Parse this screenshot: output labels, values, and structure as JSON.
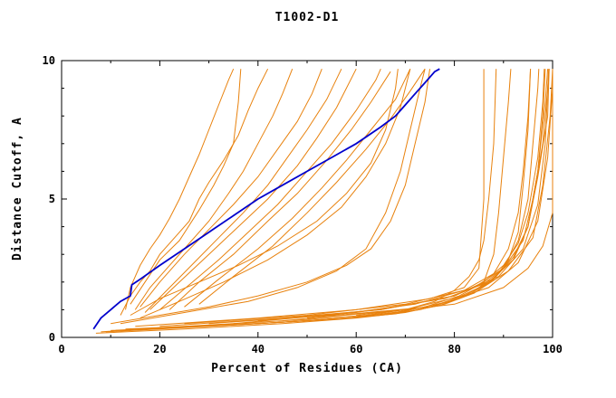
{
  "chart_data": {
    "type": "line",
    "title": "T1002-D1",
    "xlabel": "Percent of Residues (CA)",
    "ylabel": "Distance Cutoff, A",
    "xlim": [
      0,
      100
    ],
    "ylim": [
      0,
      10
    ],
    "xticks_major": [
      0,
      20,
      40,
      60,
      80,
      100
    ],
    "xticks_minor": [
      10,
      30,
      50,
      70,
      90
    ],
    "yticks_major": [
      0,
      5,
      10
    ],
    "yticks_minor": [
      1,
      2,
      3,
      4,
      6,
      7,
      8,
      9
    ],
    "grid": false,
    "legend": "none",
    "colors": {
      "predictions": "#e8820e",
      "highlight": "#0000cc",
      "axis": "#000000",
      "background": "#ffffff"
    },
    "highlight": [
      [
        6.5,
        0.3
      ],
      [
        8,
        0.7
      ],
      [
        10,
        1.0
      ],
      [
        12,
        1.3
      ],
      [
        14,
        1.5
      ],
      [
        14.3,
        1.9
      ],
      [
        16,
        2.1
      ],
      [
        20,
        2.6
      ],
      [
        25,
        3.2
      ],
      [
        30,
        3.8
      ],
      [
        35,
        4.4
      ],
      [
        40,
        5.0
      ],
      [
        45,
        5.5
      ],
      [
        50,
        6.0
      ],
      [
        55,
        6.5
      ],
      [
        60,
        7.0
      ],
      [
        65,
        7.6
      ],
      [
        68,
        8.0
      ],
      [
        70,
        8.4
      ],
      [
        72,
        8.8
      ],
      [
        74,
        9.2
      ],
      [
        76,
        9.6
      ],
      [
        77,
        9.7
      ]
    ],
    "series": [
      [
        [
          13,
          1.0
        ],
        [
          14,
          1.8
        ],
        [
          15,
          2.2
        ],
        [
          16,
          2.6
        ],
        [
          18,
          3.2
        ],
        [
          20,
          3.7
        ],
        [
          22,
          4.3
        ],
        [
          24,
          5.0
        ],
        [
          26,
          5.8
        ],
        [
          28,
          6.6
        ],
        [
          30,
          7.5
        ],
        [
          32,
          8.4
        ],
        [
          34,
          9.3
        ],
        [
          35,
          9.7
        ]
      ],
      [
        [
          12,
          0.8
        ],
        [
          14,
          1.5
        ],
        [
          16,
          2.0
        ],
        [
          18,
          2.4
        ],
        [
          20,
          3.0
        ],
        [
          23,
          3.6
        ],
        [
          26,
          4.2
        ],
        [
          28,
          5.0
        ],
        [
          30,
          5.6
        ],
        [
          33,
          6.4
        ],
        [
          36,
          7.3
        ],
        [
          38,
          8.2
        ],
        [
          40,
          9.0
        ],
        [
          42,
          9.7
        ]
      ],
      [
        [
          14,
          1.2
        ],
        [
          17,
          2.0
        ],
        [
          20,
          2.8
        ],
        [
          24,
          3.5
        ],
        [
          28,
          4.6
        ],
        [
          31,
          5.5
        ],
        [
          33,
          6.2
        ],
        [
          35,
          7.0
        ],
        [
          36,
          8.5
        ],
        [
          36.5,
          9.7
        ]
      ],
      [
        [
          15,
          1.0
        ],
        [
          18,
          1.8
        ],
        [
          22,
          2.6
        ],
        [
          26,
          3.4
        ],
        [
          30,
          4.2
        ],
        [
          34,
          5.2
        ],
        [
          37,
          6.0
        ],
        [
          40,
          7.0
        ],
        [
          43,
          8.0
        ],
        [
          45,
          8.8
        ],
        [
          47,
          9.7
        ]
      ],
      [
        [
          16,
          1.1
        ],
        [
          20,
          2.0
        ],
        [
          25,
          3.0
        ],
        [
          30,
          3.9
        ],
        [
          35,
          4.8
        ],
        [
          40,
          5.8
        ],
        [
          44,
          6.8
        ],
        [
          48,
          7.8
        ],
        [
          51,
          8.8
        ],
        [
          53,
          9.7
        ]
      ],
      [
        [
          17,
          0.9
        ],
        [
          22,
          1.8
        ],
        [
          27,
          2.7
        ],
        [
          32,
          3.6
        ],
        [
          37,
          4.5
        ],
        [
          42,
          5.5
        ],
        [
          46,
          6.5
        ],
        [
          50,
          7.5
        ],
        [
          54,
          8.6
        ],
        [
          57,
          9.7
        ]
      ],
      [
        [
          18,
          1.0
        ],
        [
          24,
          2.0
        ],
        [
          30,
          3.0
        ],
        [
          36,
          4.0
        ],
        [
          42,
          5.0
        ],
        [
          48,
          6.2
        ],
        [
          52,
          7.2
        ],
        [
          56,
          8.3
        ],
        [
          60,
          9.7
        ]
      ],
      [
        [
          20,
          1.0
        ],
        [
          26,
          1.9
        ],
        [
          32,
          2.8
        ],
        [
          38,
          3.8
        ],
        [
          44,
          4.8
        ],
        [
          50,
          6.0
        ],
        [
          55,
          7.0
        ],
        [
          60,
          8.2
        ],
        [
          64,
          9.3
        ],
        [
          65,
          9.7
        ]
      ],
      [
        [
          22,
          1.0
        ],
        [
          28,
          2.0
        ],
        [
          35,
          3.0
        ],
        [
          42,
          4.2
        ],
        [
          48,
          5.2
        ],
        [
          54,
          6.4
        ],
        [
          59,
          7.5
        ],
        [
          63,
          8.5
        ],
        [
          67,
          9.6
        ]
      ],
      [
        [
          25,
          1.1
        ],
        [
          32,
          2.1
        ],
        [
          40,
          3.2
        ],
        [
          47,
          4.3
        ],
        [
          53,
          5.4
        ],
        [
          58,
          6.4
        ],
        [
          63,
          7.5
        ],
        [
          68,
          8.6
        ],
        [
          71,
          9.7
        ]
      ],
      [
        [
          28,
          1.2
        ],
        [
          35,
          2.2
        ],
        [
          43,
          3.3
        ],
        [
          50,
          4.5
        ],
        [
          56,
          5.6
        ],
        [
          62,
          6.8
        ],
        [
          67,
          7.9
        ],
        [
          71,
          8.9
        ],
        [
          74,
          9.7
        ]
      ],
      [
        [
          10,
          0.5
        ],
        [
          20,
          0.8
        ],
        [
          30,
          1.1
        ],
        [
          40,
          1.5
        ],
        [
          50,
          2.0
        ],
        [
          58,
          2.6
        ],
        [
          63,
          3.2
        ],
        [
          67,
          4.2
        ],
        [
          70,
          5.5
        ],
        [
          72,
          7.0
        ],
        [
          74,
          8.5
        ],
        [
          75,
          9.7
        ]
      ],
      [
        [
          12,
          0.5
        ],
        [
          25,
          0.9
        ],
        [
          38,
          1.3
        ],
        [
          48,
          1.8
        ],
        [
          56,
          2.4
        ],
        [
          62,
          3.2
        ],
        [
          66,
          4.5
        ],
        [
          69,
          6.0
        ],
        [
          71,
          7.5
        ],
        [
          73,
          9.0
        ],
        [
          74,
          9.7
        ]
      ],
      [
        [
          15,
          0.4
        ],
        [
          40,
          0.7
        ],
        [
          60,
          1.0
        ],
        [
          75,
          1.4
        ],
        [
          82,
          1.8
        ],
        [
          85,
          2.5
        ],
        [
          86,
          5.0
        ],
        [
          86,
          9.7
        ]
      ],
      [
        [
          20,
          0.4
        ],
        [
          45,
          0.7
        ],
        [
          65,
          1.0
        ],
        [
          80,
          1.5
        ],
        [
          86,
          2.0
        ],
        [
          88,
          3.0
        ],
        [
          89,
          4.5
        ],
        [
          90,
          6.5
        ],
        [
          91,
          8.5
        ],
        [
          91.5,
          9.7
        ]
      ],
      [
        [
          25,
          0.5
        ],
        [
          50,
          0.8
        ],
        [
          70,
          1.2
        ],
        [
          82,
          1.7
        ],
        [
          88,
          2.3
        ],
        [
          91,
          3.2
        ],
        [
          93,
          4.5
        ],
        [
          94,
          6.0
        ],
        [
          95,
          8.0
        ],
        [
          95.5,
          9.7
        ]
      ],
      [
        [
          30,
          0.5
        ],
        [
          55,
          0.8
        ],
        [
          72,
          1.2
        ],
        [
          84,
          1.8
        ],
        [
          90,
          2.5
        ],
        [
          93,
          3.5
        ],
        [
          95,
          5.0
        ],
        [
          96,
          7.0
        ],
        [
          97,
          9.0
        ],
        [
          97.2,
          9.7
        ]
      ],
      [
        [
          35,
          0.5
        ],
        [
          60,
          0.9
        ],
        [
          78,
          1.4
        ],
        [
          87,
          2.0
        ],
        [
          92,
          2.8
        ],
        [
          95,
          4.0
        ],
        [
          97,
          6.0
        ],
        [
          98,
          8.0
        ],
        [
          98.5,
          9.7
        ]
      ],
      [
        [
          40,
          0.6
        ],
        [
          65,
          1.0
        ],
        [
          80,
          1.5
        ],
        [
          89,
          2.2
        ],
        [
          94,
          3.2
        ],
        [
          97,
          4.8
        ],
        [
          98.5,
          7.0
        ],
        [
          99,
          9.0
        ],
        [
          99.2,
          9.7
        ]
      ],
      [
        [
          45,
          0.6
        ],
        [
          70,
          1.0
        ],
        [
          84,
          1.6
        ],
        [
          91,
          2.4
        ],
        [
          96,
          3.6
        ],
        [
          98,
          5.5
        ],
        [
          99.5,
          8.0
        ],
        [
          100,
          9.7
        ]
      ],
      [
        [
          50,
          0.7
        ],
        [
          75,
          1.1
        ],
        [
          87,
          1.8
        ],
        [
          93,
          2.7
        ],
        [
          97,
          4.2
        ],
        [
          99,
          6.5
        ],
        [
          100,
          9.0
        ],
        [
          100,
          9.7
        ]
      ],
      [
        [
          60,
          0.8
        ],
        [
          80,
          1.2
        ],
        [
          90,
          1.8
        ],
        [
          95,
          2.5
        ],
        [
          98,
          3.3
        ],
        [
          100,
          4.5
        ],
        [
          100,
          9.7
        ]
      ],
      [
        [
          8,
          0.2
        ],
        [
          20,
          0.35
        ],
        [
          35,
          0.5
        ],
        [
          50,
          0.65
        ],
        [
          62,
          0.8
        ],
        [
          70,
          1.0
        ],
        [
          76,
          1.3
        ],
        [
          80,
          1.7
        ],
        [
          83,
          2.2
        ],
        [
          85,
          2.8
        ],
        [
          86,
          3.5
        ],
        [
          87,
          5.0
        ],
        [
          88,
          7.0
        ],
        [
          88.5,
          9.7
        ]
      ],
      [
        [
          7,
          0.15
        ],
        [
          25,
          0.3
        ],
        [
          45,
          0.5
        ],
        [
          60,
          0.7
        ],
        [
          70,
          0.9
        ],
        [
          78,
          1.2
        ],
        [
          84,
          1.6
        ],
        [
          88,
          2.1
        ],
        [
          91,
          2.8
        ],
        [
          93,
          3.8
        ],
        [
          94,
          5.5
        ],
        [
          95,
          7.5
        ],
        [
          95.5,
          9.7
        ]
      ],
      [
        [
          9,
          0.2
        ],
        [
          30,
          0.4
        ],
        [
          50,
          0.6
        ],
        [
          65,
          0.8
        ],
        [
          74,
          1.1
        ],
        [
          81,
          1.5
        ],
        [
          86,
          2.0
        ],
        [
          90,
          2.6
        ],
        [
          93,
          3.4
        ],
        [
          95,
          4.5
        ],
        [
          97,
          6.5
        ],
        [
          98,
          8.5
        ],
        [
          98.3,
          9.7
        ]
      ],
      [
        [
          10,
          0.25
        ],
        [
          35,
          0.45
        ],
        [
          55,
          0.65
        ],
        [
          68,
          0.85
        ],
        [
          77,
          1.15
        ],
        [
          83,
          1.55
        ],
        [
          88,
          2.1
        ],
        [
          92,
          2.9
        ],
        [
          95,
          4.0
        ],
        [
          97,
          5.8
        ],
        [
          99,
          8.0
        ],
        [
          99.3,
          9.7
        ]
      ],
      [
        [
          11,
          0.25
        ],
        [
          40,
          0.5
        ],
        [
          58,
          0.7
        ],
        [
          70,
          0.95
        ],
        [
          79,
          1.3
        ],
        [
          85,
          1.8
        ],
        [
          90,
          2.5
        ],
        [
          94,
          3.5
        ],
        [
          96,
          5.0
        ],
        [
          98,
          7.0
        ],
        [
          99,
          9.0
        ],
        [
          99.3,
          9.7
        ]
      ],
      [
        [
          13,
          0.3
        ],
        [
          45,
          0.55
        ],
        [
          62,
          0.75
        ],
        [
          73,
          1.0
        ],
        [
          81,
          1.4
        ],
        [
          87,
          2.0
        ],
        [
          92,
          2.8
        ],
        [
          95,
          4.0
        ],
        [
          97,
          6.0
        ],
        [
          98.5,
          8.5
        ],
        [
          99,
          9.7
        ]
      ],
      [
        [
          14,
          0.8
        ],
        [
          20,
          1.4
        ],
        [
          28,
          2.0
        ],
        [
          36,
          2.6
        ],
        [
          44,
          3.3
        ],
        [
          52,
          4.2
        ],
        [
          58,
          5.2
        ],
        [
          63,
          6.3
        ],
        [
          66,
          7.5
        ],
        [
          68,
          9.0
        ],
        [
          68.5,
          9.7
        ]
      ],
      [
        [
          16,
          0.7
        ],
        [
          24,
          1.3
        ],
        [
          33,
          2.0
        ],
        [
          42,
          2.8
        ],
        [
          50,
          3.7
        ],
        [
          57,
          4.7
        ],
        [
          62,
          5.8
        ],
        [
          66,
          7.0
        ],
        [
          69,
          8.3
        ],
        [
          71,
          9.7
        ]
      ]
    ]
  }
}
